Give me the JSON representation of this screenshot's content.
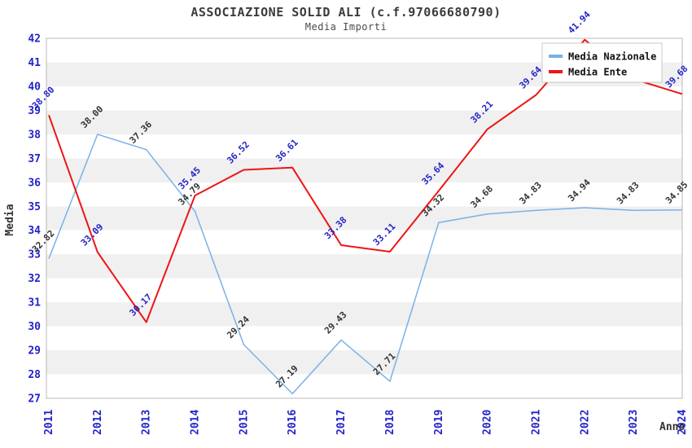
{
  "header": {
    "title": "ASSOCIAZIONE SOLID ALI (c.f.97066680790)",
    "subtitle": "Media Importi"
  },
  "colors": {
    "background": "#ffffff",
    "title_text": "#3c3c3c",
    "axis_tick_blue": "#2323c8",
    "dark_label": "#333333",
    "nazionale_line": "#7ab0e8",
    "ente_line": "#ee1515",
    "band_gray": "#f0f0f0",
    "plot_border": "#b8b8b8",
    "legend_border": "#c8c8c8",
    "legend_text": "#111111"
  },
  "chart_data": {
    "type": "line",
    "title": "ASSOCIAZIONE SOLID ALI (c.f.97066680790)",
    "subtitle": "Media Importi",
    "xlabel": "Anno",
    "ylabel": "Media",
    "x_categories": [
      "2011",
      "2012",
      "2013",
      "2014",
      "2015",
      "2016",
      "2017",
      "2018",
      "2019",
      "2020",
      "2021",
      "2022",
      "2023",
      "2024"
    ],
    "ylim": [
      27,
      42
    ],
    "y_ticks": [
      42,
      41,
      40,
      39,
      38,
      37,
      36,
      35,
      34,
      33,
      32,
      31,
      30,
      29,
      28,
      27
    ],
    "grid": "alternating horizontal bands (white / light gray per 1 unit)",
    "legend_position": "top-right-inside",
    "series": [
      {
        "name": "Media Nazionale",
        "color": "#7ab0e8",
        "label_color": "#333333",
        "values": [
          32.82,
          38.0,
          37.36,
          34.79,
          29.24,
          27.19,
          29.43,
          27.71,
          34.32,
          34.68,
          34.83,
          34.94,
          34.83,
          34.85
        ],
        "labels": [
          "32.82",
          "38.00",
          "37.36",
          "34.79",
          "29.24",
          "27.19",
          "29.43",
          "27.71",
          "34.32",
          "34.68",
          "34.83",
          "34.94",
          "34.83",
          "34.85"
        ]
      },
      {
        "name": "Media Ente",
        "color": "#ee1515",
        "label_color": "#2323c8",
        "values": [
          38.8,
          33.09,
          30.17,
          35.45,
          36.52,
          36.61,
          33.38,
          33.11,
          35.64,
          38.21,
          39.64,
          41.94,
          40.3,
          39.68
        ],
        "labels": [
          "38.80",
          "33.09",
          "30.17",
          "35.45",
          "36.52",
          "36.61",
          "33.38",
          "33.11",
          "35.64",
          "38.21",
          "39.64",
          "41.94",
          null,
          "39.68"
        ],
        "note": "2023 value estimated from line slope; its label is hidden behind the legend box"
      }
    ]
  }
}
